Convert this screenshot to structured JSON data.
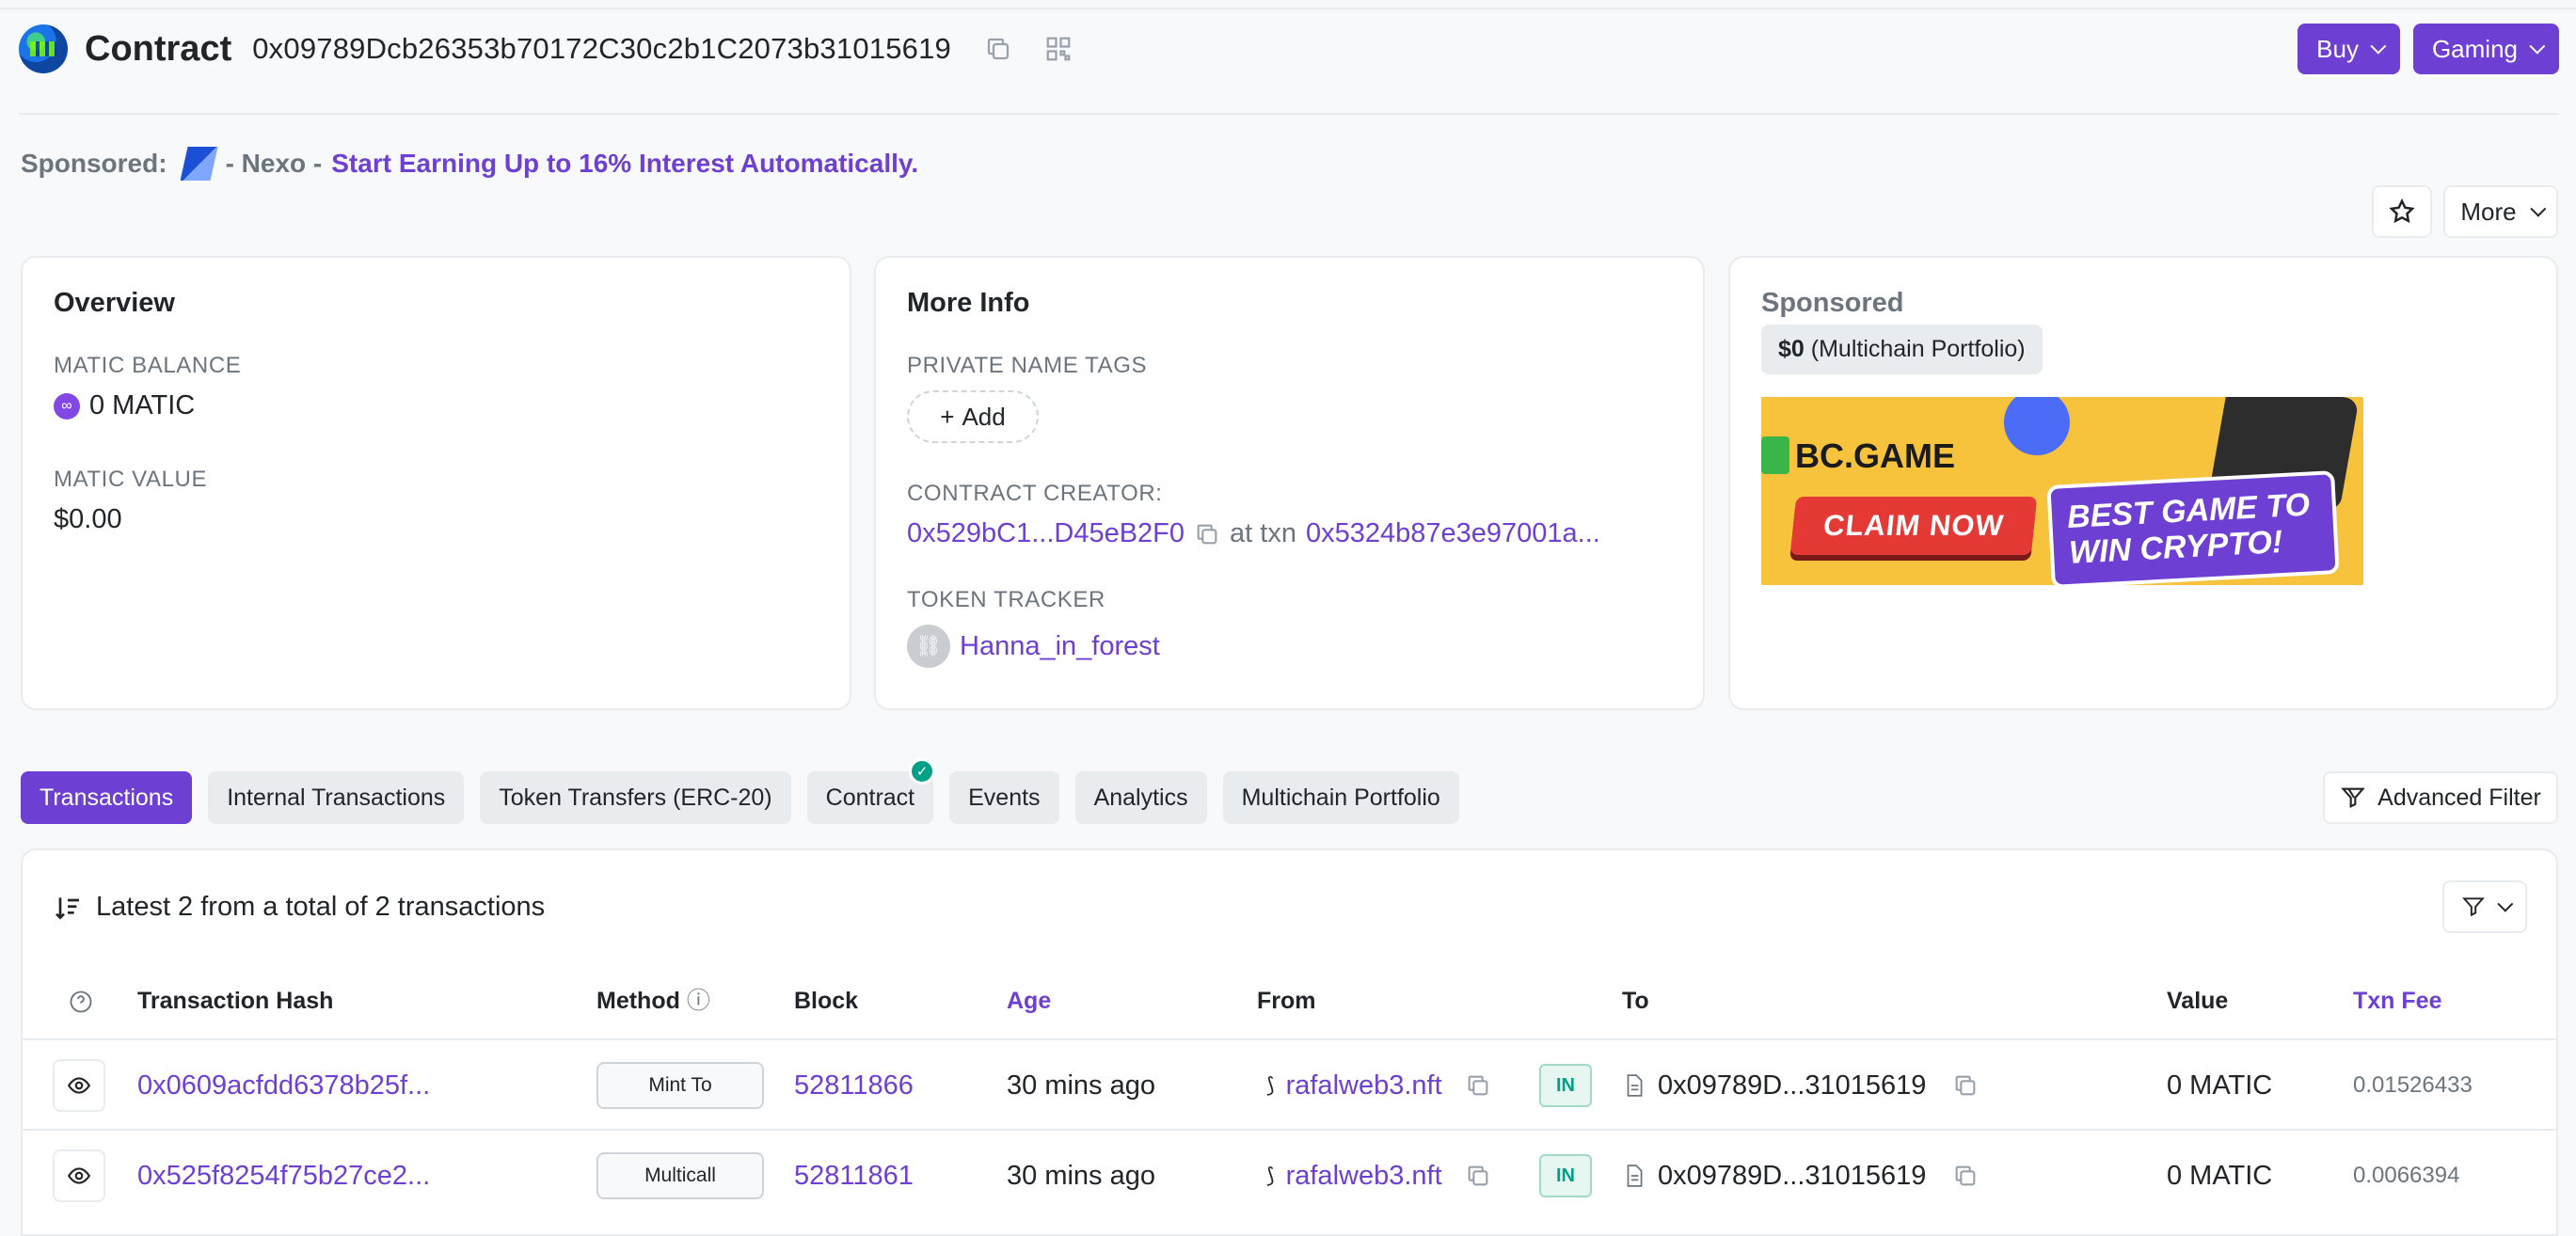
{
  "header": {
    "title": "Contract",
    "address": "0x09789Dcb26353b70172C30c2b1C2073b31015619",
    "buttons": [
      {
        "label": "Buy"
      },
      {
        "label": "Gaming"
      }
    ]
  },
  "sponsored_line": {
    "label": "Sponsored:",
    "name": "- Nexo -",
    "cta": "Start Earning Up to 16% Interest Automatically."
  },
  "actions": {
    "more_label": "More"
  },
  "overview": {
    "title": "Overview",
    "balance_label": "MATIC BALANCE",
    "balance_value": "0 MATIC",
    "value_label": "MATIC VALUE",
    "value_value": "$0.00"
  },
  "more_info": {
    "title": "More Info",
    "tags_label": "PRIVATE NAME TAGS",
    "add_label": "Add",
    "creator_label": "CONTRACT CREATOR:",
    "creator_address": "0x529bC1...D45eB2F0",
    "at_txn": "at txn",
    "creator_txn": "0x5324b87e3e97001a...",
    "token_label": "TOKEN TRACKER",
    "token_name": "Hanna_in_forest"
  },
  "sponsored_card": {
    "title": "Sponsored",
    "pill_amount": "$0",
    "pill_text": "(Multichain Portfolio)",
    "ad": {
      "brand": "BC.GAME",
      "claim": "CLAIM NOW",
      "headline": "BEST GAME TO WIN CRYPTO!"
    }
  },
  "tabs": [
    {
      "label": "Transactions",
      "active": true
    },
    {
      "label": "Internal Transactions"
    },
    {
      "label": "Token Transfers (ERC-20)"
    },
    {
      "label": "Contract",
      "verified": true
    },
    {
      "label": "Events"
    },
    {
      "label": "Analytics"
    },
    {
      "label": "Multichain Portfolio"
    }
  ],
  "advanced_filter_label": "Advanced Filter",
  "table": {
    "summary": "Latest 2 from a total of 2 transactions",
    "columns": [
      "Transaction Hash",
      "Method",
      "Block",
      "Age",
      "From",
      "To",
      "Value",
      "Txn Fee"
    ],
    "rows": [
      {
        "hash": "0x0609acfdd6378b25f...",
        "method": "Mint To",
        "block": "52811866",
        "age": "30 mins ago",
        "from": "rafalweb3.nft",
        "direction": "IN",
        "to": "0x09789D...31015619",
        "value": "0 MATIC",
        "fee": "0.01526433"
      },
      {
        "hash": "0x525f8254f75b27ce2...",
        "method": "Multicall",
        "block": "52811861",
        "age": "30 mins ago",
        "from": "rafalweb3.nft",
        "direction": "IN",
        "to": "0x09789D...31015619",
        "value": "0 MATIC",
        "fee": "0.0066394"
      }
    ]
  },
  "colors": {
    "accent": "#6e3fd3",
    "success": "#00a186",
    "muted": "#6c757d"
  }
}
